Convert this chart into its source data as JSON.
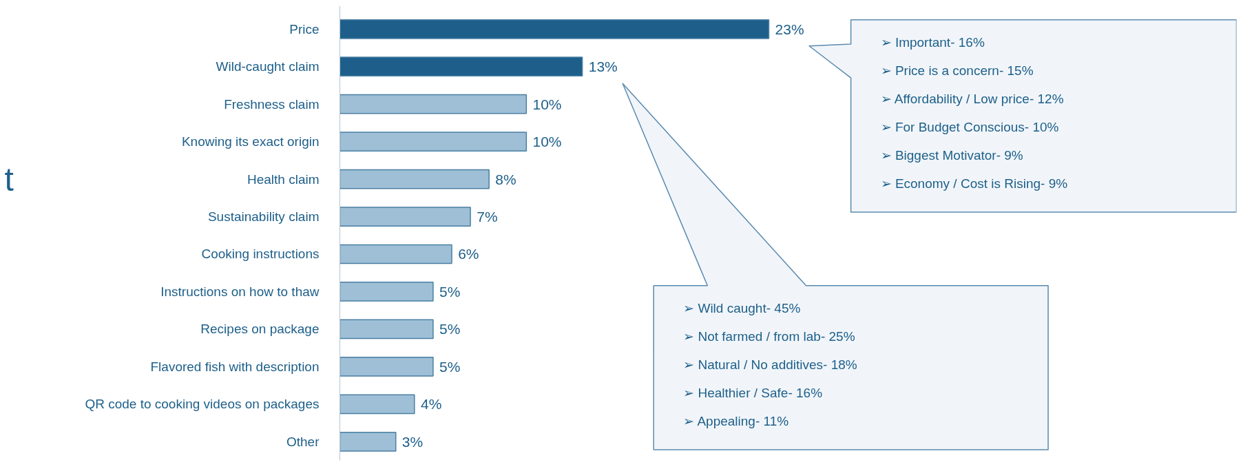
{
  "chart_data": {
    "type": "bar",
    "orientation": "horizontal",
    "categories": [
      "Price",
      "Wild-caught claim",
      "Freshness claim",
      "Knowing its exact origin",
      "Health claim",
      "Sustainability claim",
      "Cooking instructions",
      "Instructions on how to thaw",
      "Recipes on package",
      "Flavored fish with description",
      "QR code to cooking videos on packages",
      "Other"
    ],
    "values": [
      23,
      13,
      10,
      10,
      8,
      7,
      6,
      5,
      5,
      5,
      4,
      3
    ],
    "value_labels": [
      "23%",
      "13%",
      "10%",
      "10%",
      "8%",
      "7%",
      "6%",
      "5%",
      "5%",
      "5%",
      "4%",
      "3%"
    ],
    "colors": [
      "#1d5f8a",
      "#1d5f8a",
      "#9ebfd6",
      "#9ebfd6",
      "#9ebfd6",
      "#9ebfd6",
      "#9ebfd6",
      "#9ebfd6",
      "#9ebfd6",
      "#9ebfd6",
      "#9ebfd6",
      "#9ebfd6"
    ],
    "annotations": [
      "t",
      "➢  Important- 16%",
      "➢  Price is a concern- 15%",
      "➢  Affordability / Low price- 12%",
      "➢  For Budget Conscious- 10%",
      "➢  Biggest Motivator- 9%",
      "➢  Economy / Cost is Rising- 9%",
      "➢  Wild caught- 45%",
      "➢  Not farmed / from lab- 25%",
      "➢  Natural / No additives- 18%",
      "➢  Healthier / Safe- 16%",
      "➢  Appealing- 11%"
    ]
  }
}
